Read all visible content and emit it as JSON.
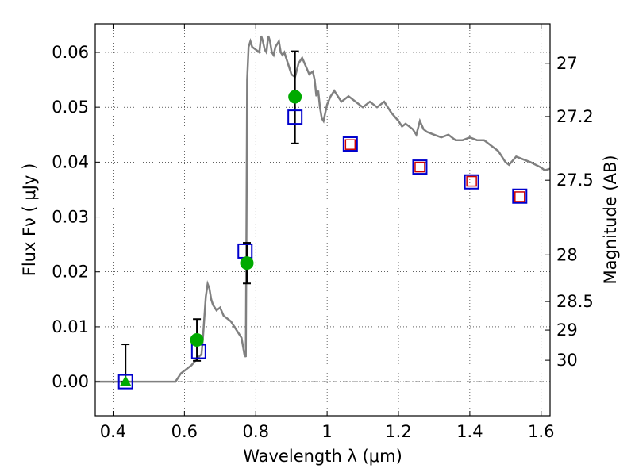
{
  "chart_data": {
    "type": "scatter",
    "xlabel": "Wavelength  λ (μm)",
    "ylabel": "Flux  Fν  ( μJy )",
    "y2label": "Magnitude (AB)",
    "xlim": [
      0.35,
      1.625
    ],
    "ylim": [
      -0.0062,
      0.0652
    ],
    "grid": true,
    "x_ticks": [
      0.4,
      0.6,
      0.8,
      1.0,
      1.2,
      1.4,
      1.6
    ],
    "x_tick_labels": [
      "0.4",
      "0.6",
      "0.8",
      "1",
      "1.2",
      "1.4",
      "1.6"
    ],
    "y_ticks": [
      0.0,
      0.01,
      0.02,
      0.03,
      0.04,
      0.05,
      0.06
    ],
    "y_tick_labels": [
      "0.00",
      "0.01",
      "0.02",
      "0.03",
      "0.04",
      "0.05",
      "0.06"
    ],
    "magnitude_ticks": [
      {
        "label": "27",
        "flux": 0.058
      },
      {
        "label": "27.2",
        "flux": 0.0483
      },
      {
        "label": "27.5",
        "flux": 0.0367
      },
      {
        "label": "28",
        "flux": 0.0231
      },
      {
        "label": "28.5",
        "flux": 0.0146
      },
      {
        "label": "29",
        "flux": 0.0094
      },
      {
        "label": "30",
        "flux": 0.0039
      }
    ],
    "series": [
      {
        "kind": "line",
        "color": "#808080",
        "x": [
          0.35,
          0.575,
          0.59,
          0.62,
          0.64,
          0.648,
          0.652,
          0.66,
          0.665,
          0.67,
          0.675,
          0.68,
          0.69,
          0.7,
          0.71,
          0.72,
          0.73,
          0.74,
          0.75,
          0.76,
          0.768,
          0.772,
          0.774,
          0.776,
          0.78,
          0.785,
          0.79,
          0.8,
          0.81,
          0.815,
          0.82,
          0.825,
          0.83,
          0.835,
          0.84,
          0.845,
          0.85,
          0.855,
          0.86,
          0.865,
          0.87,
          0.875,
          0.88,
          0.89,
          0.9,
          0.91,
          0.92,
          0.93,
          0.94,
          0.95,
          0.96,
          0.965,
          0.97,
          0.975,
          0.98,
          0.985,
          0.99,
          1.0,
          1.01,
          1.02,
          1.03,
          1.04,
          1.05,
          1.06,
          1.08,
          1.1,
          1.12,
          1.14,
          1.16,
          1.18,
          1.2,
          1.21,
          1.22,
          1.24,
          1.25,
          1.26,
          1.27,
          1.28,
          1.3,
          1.32,
          1.34,
          1.36,
          1.38,
          1.4,
          1.42,
          1.44,
          1.46,
          1.48,
          1.5,
          1.51,
          1.53,
          1.55,
          1.57,
          1.6,
          1.61,
          1.625
        ],
        "y": [
          0.0,
          0.0,
          0.0015,
          0.003,
          0.0045,
          0.005,
          0.008,
          0.0155,
          0.0178,
          0.017,
          0.015,
          0.014,
          0.013,
          0.0135,
          0.012,
          0.0115,
          0.011,
          0.01,
          0.009,
          0.008,
          0.005,
          0.0045,
          0.03,
          0.055,
          0.061,
          0.062,
          0.061,
          0.0605,
          0.06,
          0.063,
          0.062,
          0.0605,
          0.06,
          0.063,
          0.062,
          0.06,
          0.0595,
          0.061,
          0.0615,
          0.062,
          0.06,
          0.0595,
          0.06,
          0.058,
          0.056,
          0.0555,
          0.058,
          0.059,
          0.0575,
          0.056,
          0.0565,
          0.055,
          0.052,
          0.053,
          0.05,
          0.048,
          0.0475,
          0.0505,
          0.052,
          0.053,
          0.052,
          0.051,
          0.0515,
          0.052,
          0.051,
          0.05,
          0.051,
          0.05,
          0.051,
          0.049,
          0.0475,
          0.0465,
          0.047,
          0.046,
          0.045,
          0.0475,
          0.046,
          0.0455,
          0.045,
          0.0445,
          0.045,
          0.044,
          0.044,
          0.0445,
          0.044,
          0.044,
          0.043,
          0.042,
          0.04,
          0.0395,
          0.041,
          0.0405,
          0.04,
          0.039,
          0.0385,
          0.0388
        ]
      },
      {
        "kind": "markers",
        "marker": "open-square",
        "color": "#0000cc",
        "x": [
          0.435,
          0.64,
          0.77,
          0.91,
          1.065,
          1.26,
          1.405,
          1.54
        ],
        "y": [
          0.0,
          0.0055,
          0.0238,
          0.0482,
          0.0433,
          0.0391,
          0.0364,
          0.0338
        ]
      },
      {
        "kind": "markers",
        "marker": "open-square",
        "color": "#cc0000",
        "x": [
          1.065,
          1.26,
          1.405,
          1.54
        ],
        "y": [
          0.0432,
          0.0391,
          0.0365,
          0.0337
        ]
      },
      {
        "kind": "markers",
        "marker": "filled-circle",
        "color": "#00aa00",
        "x": [
          0.635,
          0.775,
          0.91
        ],
        "y": [
          0.0076,
          0.0216,
          0.0519
        ],
        "yerr_low": [
          0.0038,
          0.0037,
          0.0085
        ],
        "yerr_high": [
          0.0038,
          0.0037,
          0.0083
        ]
      },
      {
        "kind": "markers",
        "marker": "filled-triangle",
        "color": "#00aa00",
        "x": [
          0.435
        ],
        "y": [
          0.0
        ],
        "yerr_low": [
          0.0
        ],
        "yerr_high": [
          0.0068
        ]
      }
    ]
  }
}
